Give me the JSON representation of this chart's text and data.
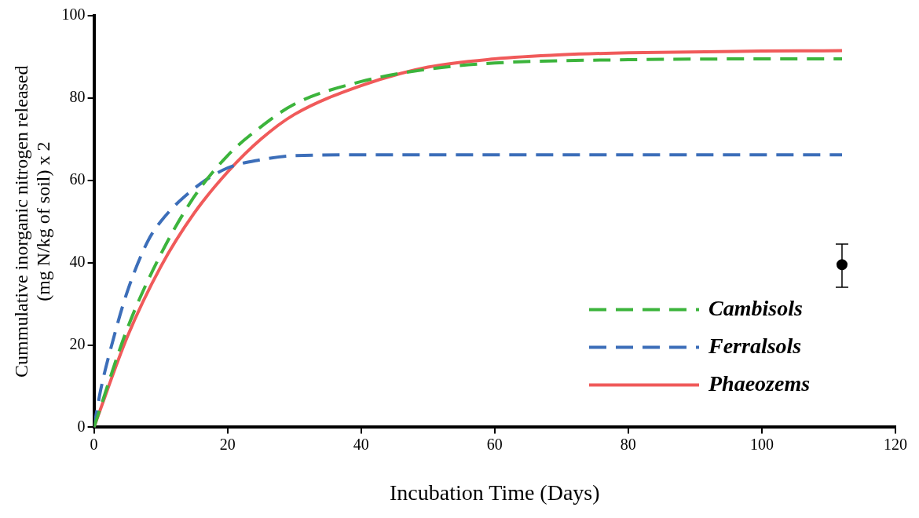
{
  "chart_data": {
    "type": "line",
    "xlabel": "Incubation Time (Days)",
    "ylabel": "Cummulative inorganic nitrogen released\n(mg N/kg of soil) x 2",
    "xlim": [
      0,
      120
    ],
    "ylim": [
      0,
      100
    ],
    "xticks": [
      0,
      20,
      40,
      60,
      80,
      100,
      120
    ],
    "yticks": [
      0,
      20,
      40,
      60,
      80,
      100
    ],
    "grid": false,
    "legend": "bottom right",
    "marker": "none",
    "series": [
      {
        "name": "Cambisols",
        "color": "#3cb43c",
        "line_style": "dashed",
        "x": [
          0,
          5,
          10,
          15,
          20,
          25,
          30,
          40,
          50,
          60,
          80,
          100,
          112
        ],
        "values": [
          0,
          24,
          42,
          56,
          66,
          73,
          78.5,
          84,
          87,
          88.5,
          89.3,
          89.5,
          89.5
        ]
      },
      {
        "name": "Ferralsols",
        "color": "#3c6eb9",
        "line_style": "dashed",
        "x": [
          0,
          1,
          3,
          5,
          8,
          10,
          15,
          20,
          25,
          30,
          40,
          60,
          112
        ],
        "values": [
          0,
          9,
          22,
          33,
          45,
          50,
          58,
          63,
          65,
          66,
          66.2,
          66.2,
          66.2
        ]
      },
      {
        "name": "Phaeozems",
        "color": "#f05a5a",
        "line_style": "solid",
        "x": [
          0,
          5,
          10,
          15,
          20,
          25,
          30,
          40,
          50,
          60,
          70,
          80,
          100,
          112
        ],
        "values": [
          0,
          22,
          39,
          52,
          62,
          70,
          76,
          83,
          87.5,
          89.5,
          90.5,
          91,
          91.4,
          91.5
        ]
      },
      {
        "type": "scatter",
        "color": "#000000",
        "marker": "circle",
        "x": [
          112
        ],
        "values": [
          39.5
        ],
        "errors": [
          [
            34,
            44.5
          ]
        ]
      }
    ]
  }
}
